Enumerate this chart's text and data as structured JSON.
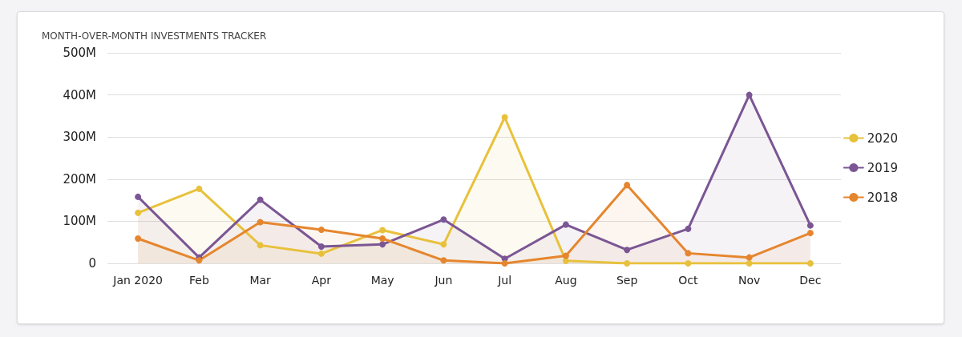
{
  "chart_data": {
    "type": "area",
    "title": "MONTH-OVER-MONTH INVESTMENTS TRACKER",
    "categories": [
      "Jan 2020",
      "Feb",
      "Mar",
      "Apr",
      "May",
      "Jun",
      "Jul",
      "Aug",
      "Sep",
      "Oct",
      "Nov",
      "Dec"
    ],
    "series": [
      {
        "name": "2020",
        "color": "#e8c13c",
        "values": [
          120,
          177,
          43,
          23,
          79,
          45,
          347,
          6,
          0,
          0,
          0,
          0
        ]
      },
      {
        "name": "2019",
        "color": "#7b5694",
        "values": [
          158,
          14,
          151,
          40,
          45,
          104,
          11,
          92,
          32,
          82,
          400,
          90
        ]
      },
      {
        "name": "2018",
        "color": "#e5862e",
        "values": [
          59,
          7,
          98,
          80,
          59,
          7,
          0,
          18,
          186,
          24,
          14,
          72
        ]
      }
    ],
    "ylim": [
      0,
      500
    ],
    "yticks": [
      0,
      {
        "value": 100,
        "label": "100M"
      },
      {
        "value": 200,
        "label": "200M"
      },
      {
        "value": 300,
        "label": "300M"
      },
      {
        "value": 400,
        "label": "400M"
      },
      {
        "value": 500,
        "label": "500M"
      }
    ],
    "grid": "y",
    "legend": "right",
    "marker": "circle"
  }
}
